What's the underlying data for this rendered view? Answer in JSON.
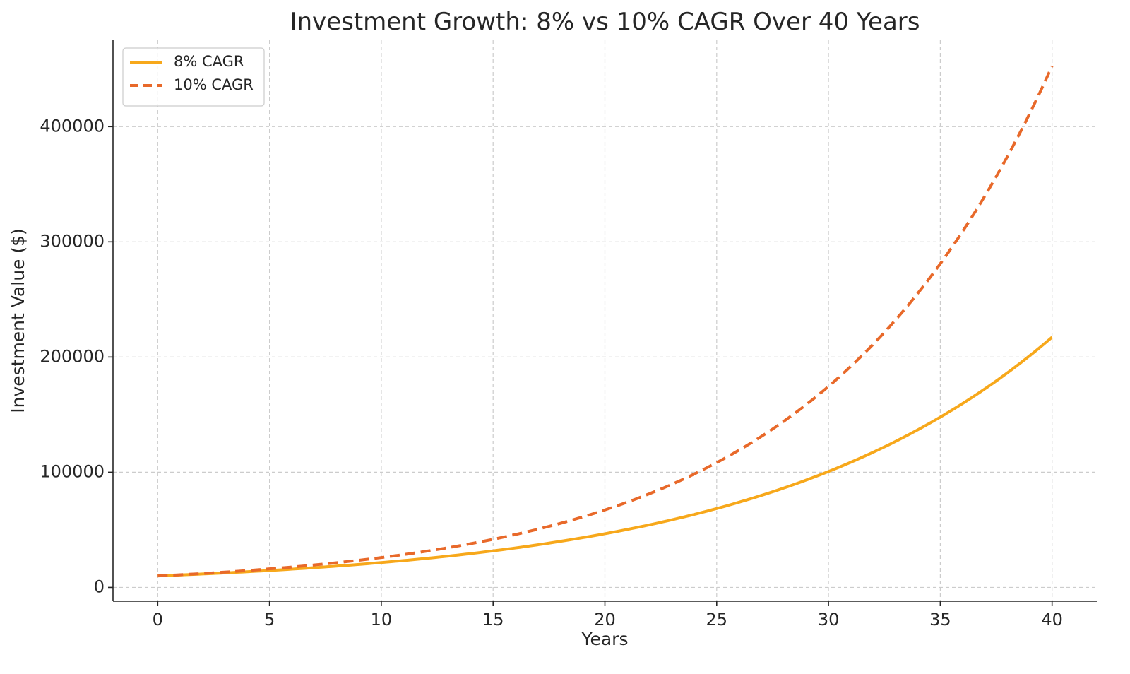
{
  "chart_data": {
    "type": "line",
    "title": "Investment Growth: 8% vs 10% CAGR Over 40 Years",
    "xlabel": "Years",
    "ylabel": "Investment Value ($)",
    "xlim": [
      -2,
      42
    ],
    "ylim": [
      -12000,
      475000
    ],
    "x_ticks": [
      0,
      5,
      10,
      15,
      20,
      25,
      30,
      35,
      40
    ],
    "y_ticks": [
      0,
      100000,
      200000,
      300000,
      400000
    ],
    "grid": true,
    "legend_position": "top-left",
    "x": [
      0,
      5,
      10,
      15,
      20,
      25,
      30,
      35,
      40
    ],
    "series": [
      {
        "name": "8% CAGR",
        "color": "#f7a81b",
        "style": "solid",
        "values": [
          10000,
          14693,
          21589,
          31722,
          46610,
          68485,
          100627,
          147853,
          217245
        ]
      },
      {
        "name": "10% CAGR",
        "color": "#e8692a",
        "style": "dashed",
        "values": [
          10000,
          16105,
          25937,
          41772,
          67275,
          108347,
          174494,
          281024,
          452593
        ]
      }
    ]
  }
}
